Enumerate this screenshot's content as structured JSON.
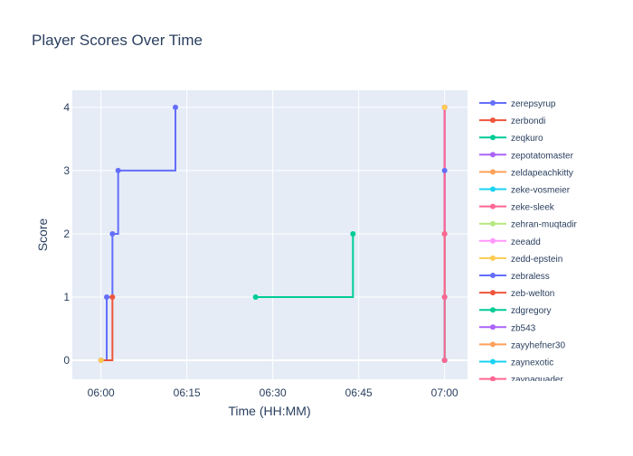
{
  "chart_data": {
    "type": "line",
    "line_shape": "step",
    "title": "Player Scores Over Time",
    "xlabel": "Time (HH:MM)",
    "ylabel": "Score",
    "xlim": [
      "05:55",
      "07:04"
    ],
    "ylim": [
      -0.3,
      4.27
    ],
    "x_ticks": [
      "06:00",
      "06:15",
      "06:30",
      "06:45",
      "07:00"
    ],
    "y_ticks": [
      0,
      1,
      2,
      3,
      4
    ],
    "grid": true,
    "legend_position": "right",
    "background": "#E5ECF6",
    "series": [
      {
        "name": "zerepsyrup",
        "color": "#636EFA",
        "x": [
          "06:00",
          "06:01",
          "06:02",
          "06:03",
          "06:13"
        ],
        "y": [
          0,
          1,
          2,
          3,
          4
        ]
      },
      {
        "name": "zerbondi",
        "color": "#EF553B",
        "x": [
          "06:00",
          "06:02"
        ],
        "y": [
          0,
          1
        ]
      },
      {
        "name": "zeqkuro",
        "color": "#00CC96",
        "x": [
          "06:27",
          "06:44"
        ],
        "y": [
          1,
          2
        ]
      },
      {
        "name": "zepotatomaster",
        "color": "#AB63FA",
        "x": [
          "06:00"
        ],
        "y": [
          0
        ]
      },
      {
        "name": "zeldapeachkitty",
        "color": "#FFA15A",
        "x": [
          "06:00"
        ],
        "y": [
          0
        ]
      },
      {
        "name": "zeke-vosmeier",
        "color": "#19D3F3",
        "x": [
          "06:00"
        ],
        "y": [
          0
        ]
      },
      {
        "name": "zeke-sleek",
        "color": "#FF6692",
        "x": [
          "06:00"
        ],
        "y": [
          0
        ]
      },
      {
        "name": "zehran-muqtadir",
        "color": "#B6E880",
        "x": [
          "06:00"
        ],
        "y": [
          0
        ]
      },
      {
        "name": "zeeadd",
        "color": "#FF97FF",
        "x": [
          "06:00"
        ],
        "y": [
          0
        ]
      },
      {
        "name": "zedd-epstein",
        "color": "#FECB52",
        "x": [
          "06:00"
        ],
        "y": [
          0
        ]
      },
      {
        "name": "zebraless",
        "color": "#636EFA",
        "x": [
          "07:00",
          "07:00"
        ],
        "y": [
          0,
          3
        ]
      },
      {
        "name": "zeb-welton",
        "color": "#EF553B",
        "x": [
          "07:00",
          "07:00",
          "07:00"
        ],
        "y": [
          0,
          1,
          4
        ]
      },
      {
        "name": "zdgregory",
        "color": "#00CC96",
        "x": [
          "07:00",
          "07:00"
        ],
        "y": [
          0,
          2
        ]
      },
      {
        "name": "zb543",
        "color": "#AB63FA",
        "x": [
          "07:00",
          "07:00"
        ],
        "y": [
          0,
          4
        ]
      },
      {
        "name": "zayyhefner30",
        "color": "#FFA15A",
        "x": [
          "07:00",
          "07:00"
        ],
        "y": [
          0,
          2
        ]
      },
      {
        "name": "zaynexotic",
        "color": "#19D3F3",
        "x": [
          "07:00",
          "07:00"
        ],
        "y": [
          0,
          1
        ]
      },
      {
        "name": "zaynaquader",
        "color": "#FF6692",
        "x": [
          "07:00",
          "07:00",
          "07:00",
          "07:00"
        ],
        "y": [
          0,
          1,
          2,
          4
        ]
      }
    ],
    "extra_points": [
      {
        "color": "#FECB52",
        "x": "07:00",
        "y": 4
      }
    ]
  }
}
